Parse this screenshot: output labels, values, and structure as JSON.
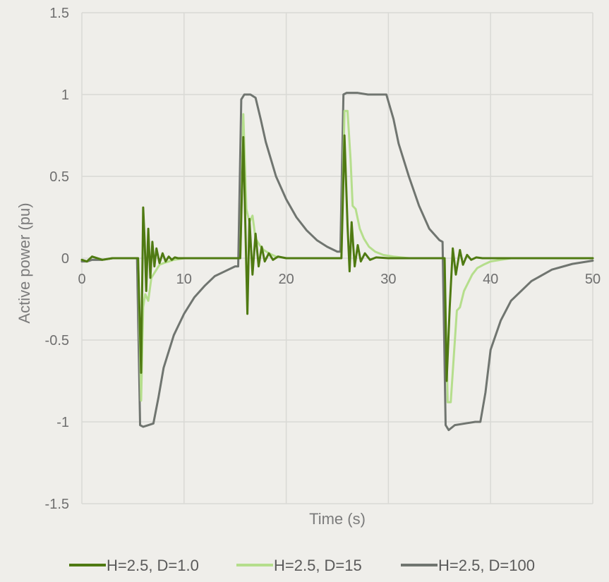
{
  "chart_data": {
    "type": "line",
    "title": "",
    "xlabel": "Time (s)",
    "ylabel": "Active power (pu)",
    "xlim": [
      0,
      50
    ],
    "ylim": [
      -1.5,
      1.5
    ],
    "xticks": [
      0,
      10,
      20,
      30,
      40,
      50
    ],
    "yticks": [
      -1.5,
      -1,
      -0.5,
      0,
      0.5,
      1,
      1.5
    ],
    "xtick_labels": [
      "0",
      "10",
      "20",
      "30",
      "40",
      "50"
    ],
    "ytick_labels": [
      "-1.5",
      "-1",
      "-0.5",
      "0",
      "0.5",
      "1",
      "1.5"
    ],
    "grid": true,
    "legend_position": "bottom",
    "series": [
      {
        "name": "H=2.5, D=1.0",
        "color": "#4f7a12",
        "x": [
          0,
          0.5,
          1,
          2,
          3,
          4,
          5,
          5.2,
          5.5,
          5.8,
          6.0,
          6.15,
          6.3,
          6.5,
          6.7,
          6.9,
          7.1,
          7.3,
          7.6,
          7.9,
          8.2,
          8.5,
          8.8,
          9.1,
          9.4,
          10,
          11,
          12,
          13,
          14,
          15,
          15.2,
          15.5,
          15.8,
          16.0,
          16.2,
          16.4,
          16.7,
          17.0,
          17.3,
          17.6,
          17.9,
          18.3,
          18.7,
          19.2,
          20,
          22,
          24,
          25,
          25.2,
          25.4,
          25.7,
          26.0,
          26.2,
          26.4,
          26.7,
          27.0,
          27.3,
          27.7,
          28.2,
          28.8,
          30,
          32,
          34,
          35,
          35.2,
          35.5,
          35.7,
          36.0,
          36.3,
          36.6,
          37.0,
          37.3,
          37.7,
          38.1,
          38.6,
          39.2,
          40,
          45,
          50
        ],
        "y": [
          -0.01,
          -0.02,
          0.01,
          -0.01,
          0,
          0,
          0,
          0,
          0,
          -0.7,
          0.31,
          0.1,
          -0.2,
          0.18,
          -0.12,
          0.1,
          -0.05,
          0.06,
          -0.03,
          0.03,
          -0.02,
          0.01,
          -0.01,
          0.005,
          0,
          0,
          0,
          0,
          0,
          0,
          0,
          0,
          0,
          0.74,
          0.2,
          -0.34,
          0.24,
          -0.1,
          0.15,
          -0.05,
          0.07,
          -0.02,
          0.03,
          -0.01,
          0.01,
          0,
          0,
          0,
          0,
          0,
          0,
          0.75,
          0.2,
          -0.08,
          0.22,
          -0.05,
          0.08,
          -0.02,
          0.03,
          -0.01,
          0.005,
          0,
          0,
          0,
          0,
          0,
          0,
          -0.75,
          -0.3,
          0.06,
          -0.1,
          0.05,
          -0.04,
          0.02,
          -0.01,
          0.005,
          0,
          0,
          0,
          0
        ]
      },
      {
        "name": "H=2.5, D=15",
        "color": "#b5de8c",
        "x": [
          0,
          0.5,
          1,
          2,
          3,
          4,
          5,
          5.2,
          5.5,
          5.8,
          6.0,
          6.2,
          6.5,
          6.8,
          7.2,
          7.6,
          8.0,
          8.5,
          9.0,
          10,
          12,
          14,
          15,
          15.2,
          15.5,
          15.8,
          16.1,
          16.4,
          16.7,
          17.0,
          17.4,
          17.8,
          18.3,
          19.0,
          20,
          22,
          24,
          25,
          25.2,
          25.4,
          25.7,
          26.0,
          26.3,
          26.5,
          26.8,
          27.2,
          27.6,
          28.1,
          28.7,
          29.5,
          30.5,
          32,
          34,
          35,
          35.2,
          35.5,
          35.8,
          36.1,
          36.4,
          36.7,
          37.0,
          37.4,
          37.8,
          38.2,
          38.7,
          39.3,
          40,
          41,
          42,
          44,
          46,
          50
        ],
        "y": [
          -0.01,
          -0.02,
          0.01,
          -0.01,
          0,
          0,
          0,
          0,
          0,
          -0.87,
          -0.3,
          -0.22,
          -0.26,
          -0.12,
          -0.08,
          -0.04,
          -0.03,
          -0.02,
          -0.01,
          0,
          0,
          0,
          0,
          0,
          0,
          0.88,
          0.3,
          0.22,
          0.26,
          0.12,
          0.08,
          0.05,
          0.03,
          0.01,
          0,
          0,
          0,
          0,
          0,
          0,
          0.9,
          0.9,
          0.6,
          0.32,
          0.3,
          0.18,
          0.12,
          0.07,
          0.04,
          0.02,
          0.01,
          0,
          0,
          0,
          0,
          0,
          -0.88,
          -0.88,
          -0.6,
          -0.32,
          -0.3,
          -0.2,
          -0.15,
          -0.1,
          -0.06,
          -0.04,
          -0.02,
          -0.01,
          0,
          0,
          0,
          0
        ]
      },
      {
        "name": "H=2.5, D=100",
        "color": "#707570",
        "x": [
          0,
          0.5,
          1,
          2,
          3,
          4,
          5,
          5.4,
          5.7,
          6.0,
          6.5,
          7.0,
          7.5,
          8.0,
          9.0,
          10,
          11,
          12,
          13,
          14,
          15,
          15.3,
          15.6,
          15.9,
          16.5,
          17.0,
          17.5,
          18.0,
          19.0,
          20,
          21,
          22,
          23,
          24,
          25,
          25.3,
          25.6,
          25.9,
          27,
          28,
          29,
          29.8,
          30.5,
          31,
          32,
          33,
          34,
          35,
          35.3,
          35.6,
          35.9,
          36.5,
          37.5,
          38.5,
          39.0,
          39.5,
          40,
          41,
          42,
          44,
          46,
          48,
          50
        ],
        "y": [
          -0.02,
          -0.02,
          -0.01,
          -0.01,
          0,
          0,
          0,
          0,
          -1.02,
          -1.03,
          -1.02,
          -1.01,
          -0.85,
          -0.67,
          -0.47,
          -0.34,
          -0.24,
          -0.17,
          -0.11,
          -0.08,
          -0.05,
          -0.05,
          0.97,
          1.0,
          1.0,
          0.98,
          0.85,
          0.71,
          0.5,
          0.36,
          0.25,
          0.17,
          0.11,
          0.07,
          0.04,
          0.04,
          1.0,
          1.01,
          1.01,
          1.0,
          1.0,
          1.0,
          0.85,
          0.7,
          0.5,
          0.32,
          0.18,
          0.11,
          0.1,
          -1.02,
          -1.05,
          -1.02,
          -1.01,
          -1.0,
          -1.0,
          -0.82,
          -0.56,
          -0.38,
          -0.26,
          -0.14,
          -0.07,
          -0.035,
          -0.015
        ]
      }
    ]
  }
}
